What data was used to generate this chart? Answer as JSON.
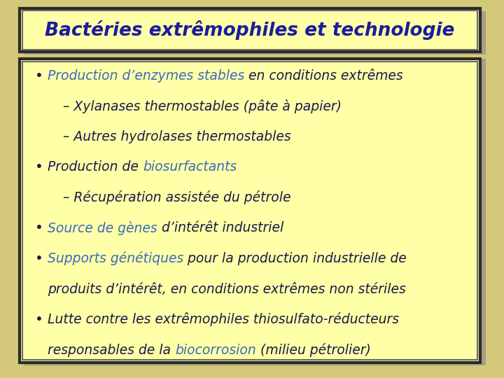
{
  "title": "Bactéries extrêmophiles et technologie",
  "title_color": "#1c1c9c",
  "title_bg": "#ffffa8",
  "title_border_outer": "#2a2a2a",
  "title_border_inner": "#6a6a6a",
  "body_bg": "#ffffa8",
  "body_border_outer": "#2a2a2a",
  "body_border_inner": "#6a6a6a",
  "outer_bg": "#d4c87a",
  "dark_color": "#1a1a4a",
  "blue_color": "#3a6bbf",
  "lines": [
    {
      "indent": 0,
      "bullet": true,
      "continuation": false,
      "segments": [
        {
          "text": "Production d’enzymes stables",
          "color": "#3a6bbf"
        },
        {
          "text": " en conditions extrêmes",
          "color": "#1a1a4a"
        }
      ]
    },
    {
      "indent": 1,
      "bullet": false,
      "continuation": false,
      "segments": [
        {
          "text": "– Xylanases thermostables (pâte à papier)",
          "color": "#1a1a4a"
        }
      ]
    },
    {
      "indent": 1,
      "bullet": false,
      "continuation": false,
      "segments": [
        {
          "text": "– Autres hydrolases thermostables",
          "color": "#1a1a4a"
        }
      ]
    },
    {
      "indent": 0,
      "bullet": true,
      "continuation": false,
      "segments": [
        {
          "text": "Production de ",
          "color": "#1a1a4a"
        },
        {
          "text": "biosurfactants",
          "color": "#3a6bbf"
        }
      ]
    },
    {
      "indent": 1,
      "bullet": false,
      "continuation": false,
      "segments": [
        {
          "text": "– Récupération assistée du pétrole",
          "color": "#1a1a4a"
        }
      ]
    },
    {
      "indent": 0,
      "bullet": true,
      "continuation": false,
      "segments": [
        {
          "text": "Source de gènes",
          "color": "#3a6bbf"
        },
        {
          "text": " d’intérêt industriel",
          "color": "#1a1a4a"
        }
      ]
    },
    {
      "indent": 0,
      "bullet": true,
      "continuation": false,
      "segments": [
        {
          "text": "Supports génétiques",
          "color": "#3a6bbf"
        },
        {
          "text": " pour la production industrielle de",
          "color": "#1a1a4a"
        }
      ]
    },
    {
      "indent": 0,
      "bullet": false,
      "continuation": true,
      "segments": [
        {
          "text": "produits d’intérêt, en conditions extrêmes non stériles",
          "color": "#1a1a4a"
        }
      ]
    },
    {
      "indent": 0,
      "bullet": true,
      "continuation": false,
      "segments": [
        {
          "text": "Lutte contre les extrêmophiles thiosulfato-réducteurs",
          "color": "#1a1a4a"
        }
      ]
    },
    {
      "indent": 0,
      "bullet": false,
      "continuation": true,
      "segments": [
        {
          "text": "responsables de la ",
          "color": "#1a1a4a"
        },
        {
          "text": "biocorrosion",
          "color": "#3a6bbf"
        },
        {
          "text": " (milieu pétrolier)",
          "color": "#1a1a4a"
        }
      ]
    }
  ],
  "font_size": 13.5,
  "title_font_size": 19
}
